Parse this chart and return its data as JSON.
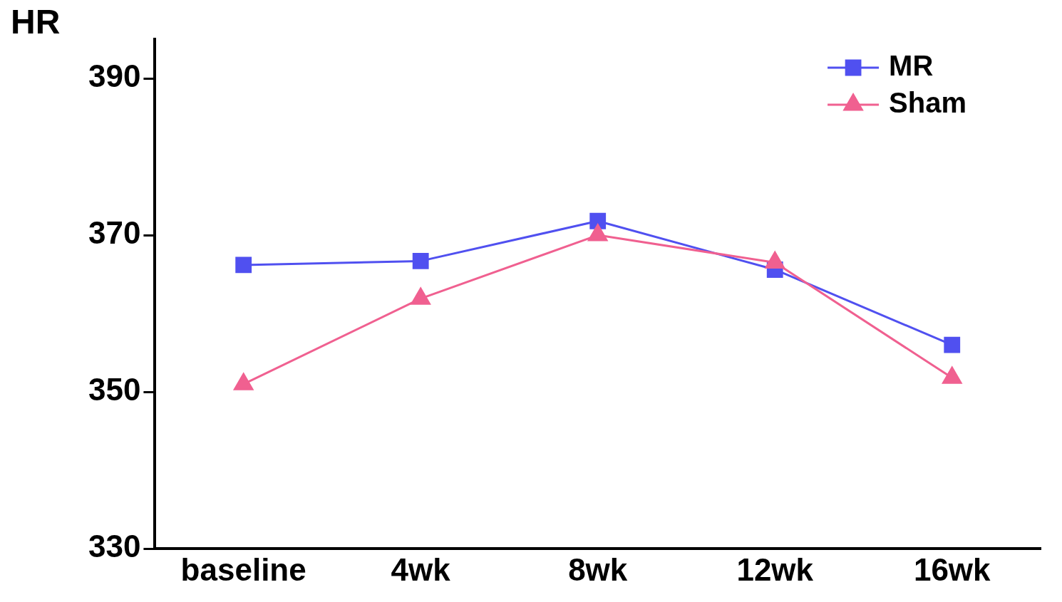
{
  "chart_data": {
    "type": "line",
    "title": "HR",
    "categories": [
      "baseline",
      "4wk",
      "8wk",
      "12wk",
      "16wk"
    ],
    "series": [
      {
        "name": "MR",
        "color": "#5050f0",
        "marker": "square",
        "values": [
          366.2,
          366.7,
          371.8,
          365.6,
          356.0
        ]
      },
      {
        "name": "Sham",
        "color": "#f06090",
        "marker": "triangle",
        "values": [
          351.0,
          361.9,
          370.0,
          366.5,
          351.8
        ]
      }
    ],
    "ylim": [
      330,
      395
    ],
    "yticks": [
      330,
      350,
      370,
      390
    ],
    "grid": false,
    "legend": "top right",
    "line_style": "solid"
  }
}
